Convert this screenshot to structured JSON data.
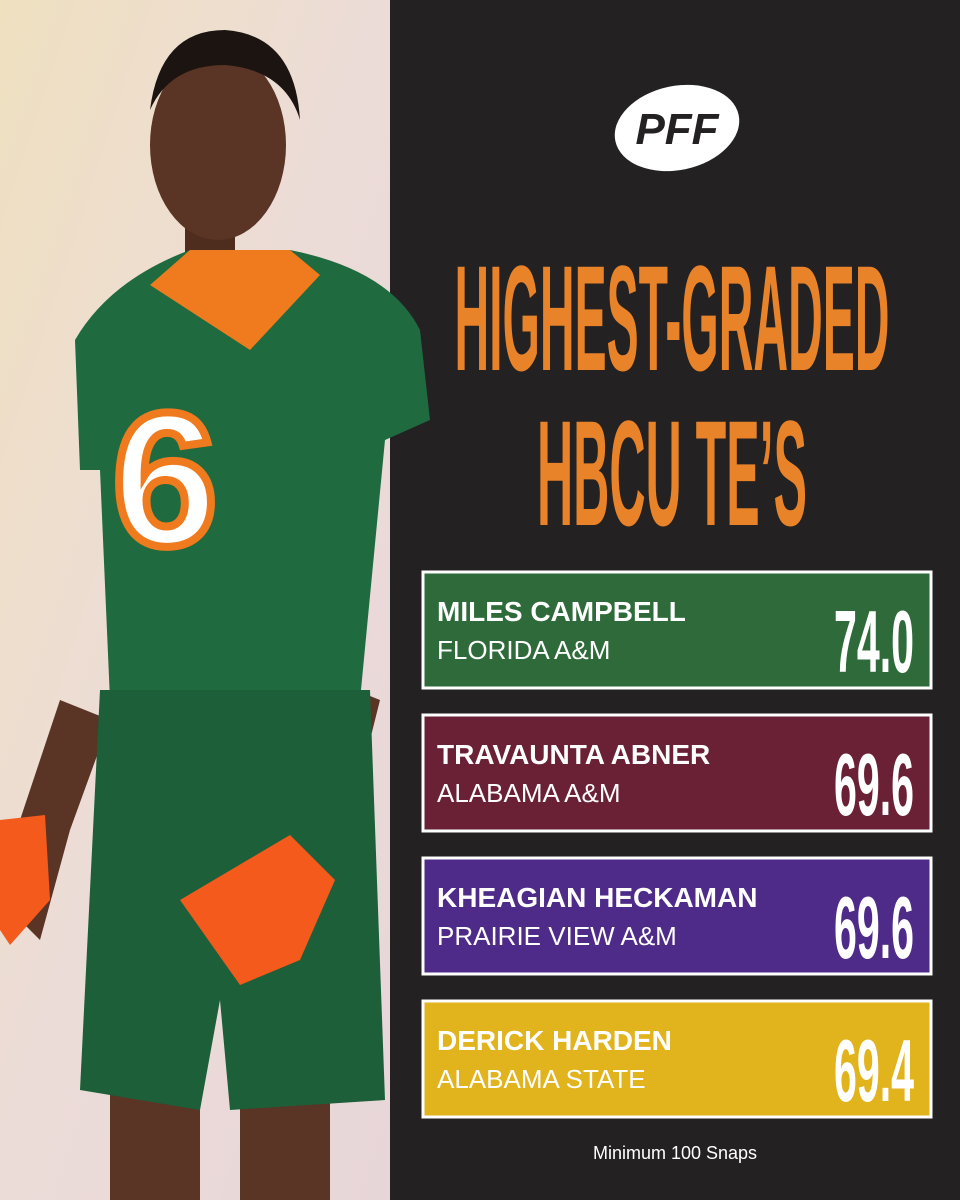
{
  "logo": "PFF",
  "title": {
    "line1": "HIGHEST-GRADED",
    "line2": "HBCU TE’S"
  },
  "players": [
    {
      "name": "MILES CAMPBELL",
      "school": "FLORIDA A&M",
      "grade": "74.0",
      "color": "#2f6b3a"
    },
    {
      "name": "TRAVAUNTA ABNER",
      "school": "ALABAMA A&M",
      "grade": "69.6",
      "color": "#6a2035"
    },
    {
      "name": "KHEAGIAN HECKAMAN",
      "school": "PRAIRIE VIEW A&M",
      "grade": "69.6",
      "color": "#4e2a89"
    },
    {
      "name": "DERICK HARDEN",
      "school": "ALABAMA STATE",
      "grade": "69.4",
      "color": "#e1b31c"
    }
  ],
  "footnote": "Minimum 100 Snaps"
}
